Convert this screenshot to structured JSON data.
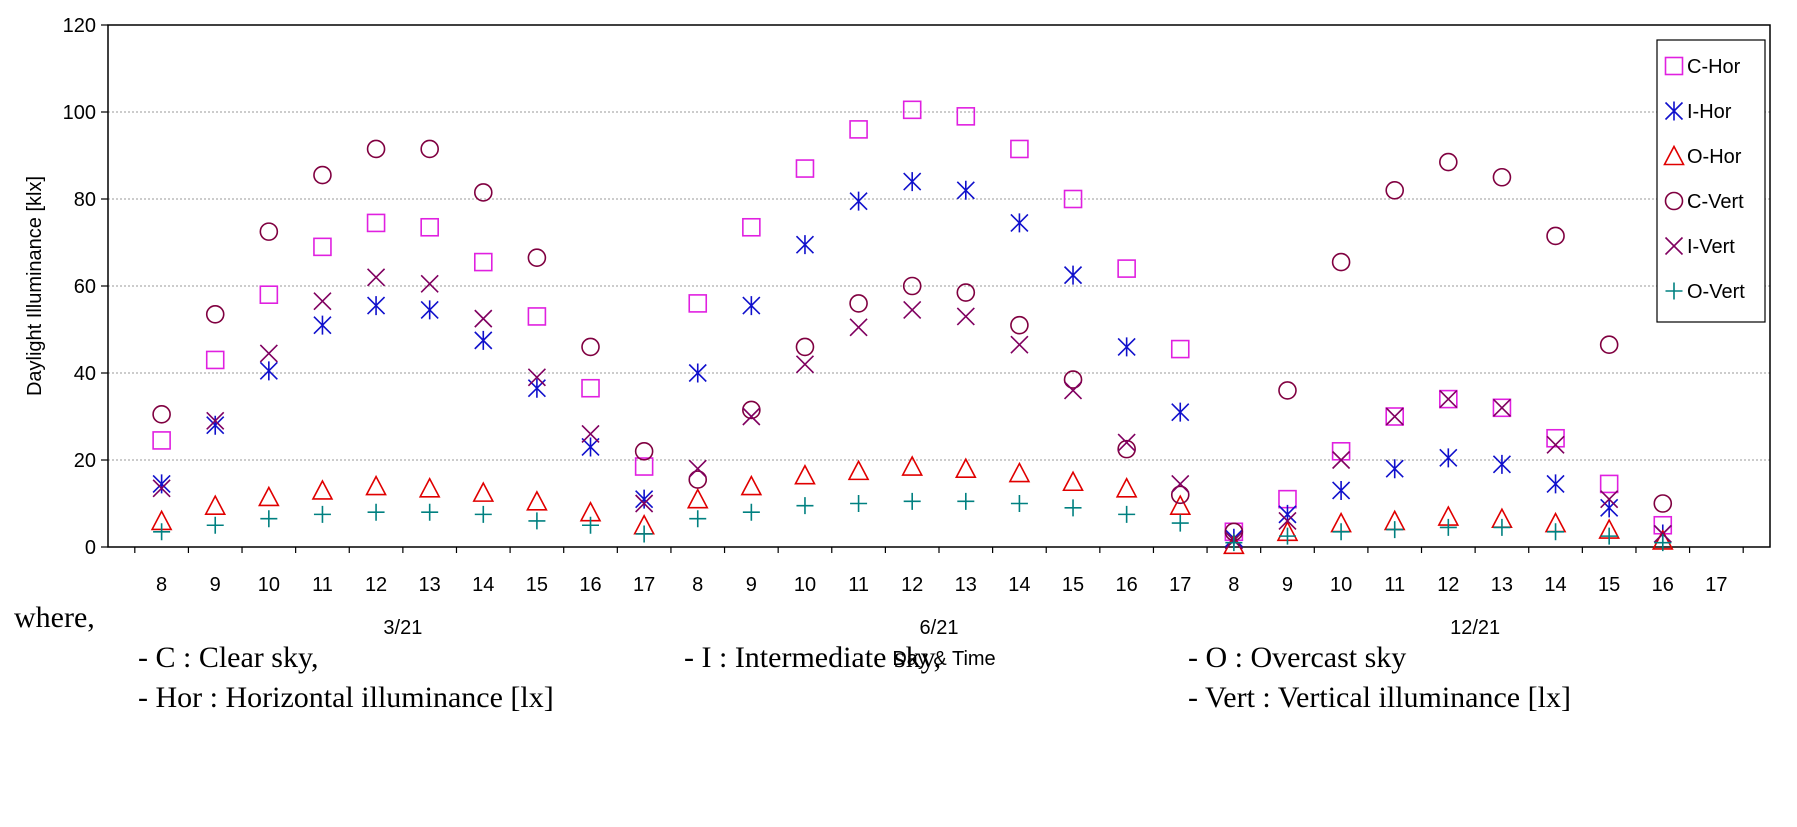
{
  "chart_data": {
    "type": "scatter",
    "xlabel": "Day & Time",
    "ylabel": "Daylight  Illuminance [klx]",
    "ylim": [
      0,
      120
    ],
    "yticks": [
      0,
      20,
      40,
      60,
      80,
      100,
      120
    ],
    "grid": "horizontal dotted",
    "legend_position": "top-right",
    "x_tick_labels": [
      "8",
      "9",
      "10",
      "11",
      "12",
      "13",
      "14",
      "15",
      "16",
      "17",
      "8",
      "9",
      "10",
      "11",
      "12",
      "13",
      "14",
      "15",
      "16",
      "17",
      "8",
      "9",
      "10",
      "11",
      "12",
      "13",
      "14",
      "15",
      "16",
      "17"
    ],
    "groups": [
      {
        "label": "3/21",
        "hours": [
          "8",
          "9",
          "10",
          "11",
          "12",
          "13",
          "14",
          "15",
          "16",
          "17"
        ]
      },
      {
        "label": "6/21",
        "hours": [
          "8",
          "9",
          "10",
          "11",
          "12",
          "13",
          "14",
          "15",
          "16",
          "17"
        ]
      },
      {
        "label": "12/21",
        "hours": [
          "8",
          "9",
          "10",
          "11",
          "12",
          "13",
          "14",
          "15",
          "16",
          "17"
        ]
      }
    ],
    "series": [
      {
        "name": "C-Hor",
        "marker": "square",
        "color": "#e020e0",
        "values": [
          24.5,
          43,
          58,
          69,
          74.5,
          73.5,
          65.5,
          53,
          36.5,
          18.5,
          56,
          73.5,
          87,
          96,
          100.5,
          99,
          91.5,
          80,
          64,
          45.5,
          3.5,
          11,
          22,
          30,
          34,
          32,
          25,
          14.5,
          5,
          null
        ]
      },
      {
        "name": "I-Hor",
        "marker": "asterisk",
        "color": "#1010cc",
        "values": [
          14.5,
          28,
          40.5,
          51,
          55.5,
          54.5,
          47.5,
          36.5,
          23,
          11,
          40,
          55.5,
          69.5,
          79.5,
          84,
          82,
          74.5,
          62.5,
          46,
          31,
          2,
          7.5,
          13,
          18,
          20.5,
          19,
          14.5,
          9,
          3,
          null
        ]
      },
      {
        "name": "O-Hor",
        "marker": "triangle",
        "color": "#e00000",
        "values": [
          6,
          9.5,
          11.5,
          13,
          14,
          13.5,
          12.5,
          10.5,
          8,
          5,
          11,
          14,
          16.5,
          17.5,
          18.5,
          18,
          17,
          15,
          13.5,
          9.5,
          0.5,
          3.5,
          5.5,
          6,
          7,
          6.5,
          5.5,
          4,
          1.5,
          null
        ]
      },
      {
        "name": "C-Vert",
        "marker": "circle",
        "color": "#800040",
        "values": [
          30.5,
          53.5,
          72.5,
          85.5,
          91.5,
          91.5,
          81.5,
          66.5,
          46,
          22,
          15.5,
          31.5,
          46,
          56,
          60,
          58.5,
          51,
          38.5,
          22.5,
          12,
          3.5,
          36,
          65.5,
          82,
          88.5,
          85,
          71.5,
          46.5,
          10,
          null
        ]
      },
      {
        "name": "I-Vert",
        "marker": "x",
        "color": "#800060",
        "values": [
          13.5,
          29,
          44.5,
          56.5,
          62,
          60.5,
          52.5,
          39,
          26,
          10,
          18,
          30,
          42,
          50.5,
          54.5,
          53,
          46.5,
          36,
          24,
          14.5,
          1.5,
          6,
          20,
          30,
          34,
          32,
          23.5,
          11,
          3,
          null
        ]
      },
      {
        "name": "O-Vert",
        "marker": "plus",
        "color": "#008080",
        "values": [
          3.5,
          5,
          6.5,
          7.5,
          8,
          8,
          7.5,
          6,
          5,
          3,
          6.5,
          8,
          9.5,
          10,
          10.5,
          10.5,
          10,
          9,
          7.5,
          5.5,
          1,
          2.5,
          3.5,
          4,
          4.5,
          4.5,
          3.5,
          2.5,
          1,
          null
        ]
      }
    ]
  },
  "notes": {
    "where": "where,",
    "clear": "- C : Clear sky,",
    "intermediate": "- I : Intermediate sky,",
    "overcast": "- O : Overcast sky",
    "horizontal": "- Hor : Horizontal illuminance [lx]",
    "vertical": "- Vert : Vertical illuminance [lx]"
  }
}
